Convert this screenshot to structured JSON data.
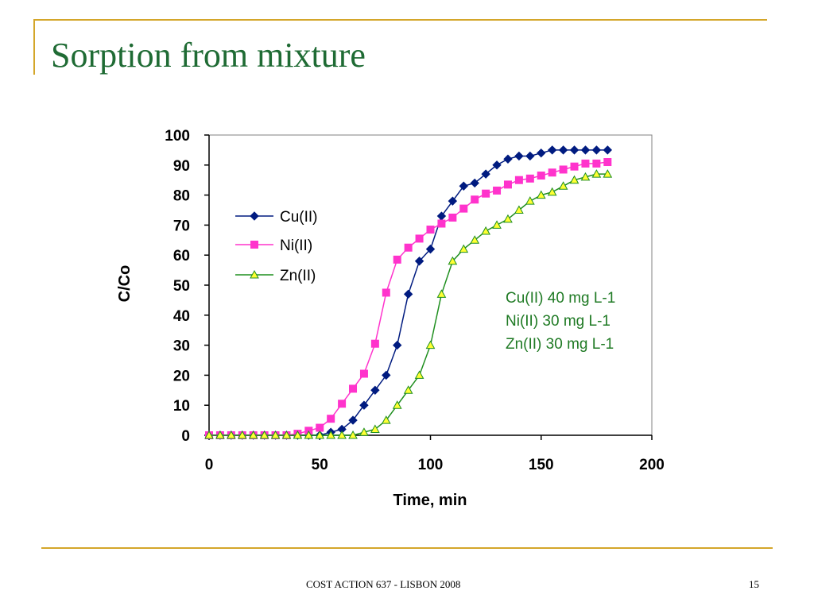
{
  "slide": {
    "title": "Sorption from mixture",
    "footer": "COST ACTION 637 -  LISBON 2008",
    "page_number": "15"
  },
  "colors": {
    "accent_rule": "#d4a62a",
    "title": "#1f6b34",
    "annotation": "#1f7a24"
  },
  "chart_data": {
    "type": "line",
    "title": "",
    "xlabel": "Time, min",
    "ylabel": "C/Co",
    "xlim": [
      0,
      200
    ],
    "ylim": [
      0,
      100
    ],
    "xticks": [
      0,
      50,
      100,
      150,
      200
    ],
    "yticks": [
      0,
      10,
      20,
      30,
      40,
      50,
      60,
      70,
      80,
      90,
      100
    ],
    "grid": false,
    "legend_position": "upper-left",
    "annotations": [
      "Cu(II) 40 mg L-1",
      "Ni(II) 30 mg L-1",
      "Zn(II) 30 mg L-1"
    ],
    "x": [
      0,
      5,
      10,
      15,
      20,
      25,
      30,
      35,
      40,
      45,
      50,
      55,
      60,
      65,
      70,
      75,
      80,
      85,
      90,
      95,
      100,
      105,
      110,
      115,
      120,
      125,
      130,
      135,
      140,
      145,
      150,
      155,
      160,
      165,
      170,
      175,
      180
    ],
    "series": [
      {
        "name": "Cu(II)",
        "color": "#001b80",
        "marker": "diamond",
        "values": [
          0,
          0,
          0,
          0,
          0,
          0,
          0,
          0,
          0,
          0,
          0,
          1,
          2,
          5,
          10,
          15,
          20,
          30,
          47,
          58,
          62,
          73,
          78,
          83,
          84,
          87,
          90,
          92,
          93,
          93,
          94,
          95,
          95,
          95,
          95,
          95,
          95
        ]
      },
      {
        "name": "Ni(II)",
        "color": "#ff33cc",
        "marker": "square",
        "values": [
          0,
          0,
          0,
          0,
          0,
          0,
          0,
          0,
          0.5,
          1.5,
          2.5,
          5.5,
          10.5,
          15.5,
          20.5,
          30.5,
          47.5,
          58.5,
          62.5,
          65.5,
          68.5,
          70.5,
          72.5,
          75.5,
          78.5,
          80.5,
          81.5,
          83.5,
          85,
          85.5,
          86.5,
          87.5,
          88.5,
          89.5,
          90.5,
          90.5,
          91
        ]
      },
      {
        "name": "Zn(II)",
        "color": "#1f8f1f",
        "fill": "#ffff33",
        "marker": "triangle",
        "values": [
          0,
          0,
          0,
          0,
          0,
          0,
          0,
          0,
          0,
          0,
          0,
          0,
          0,
          0,
          1,
          2,
          5,
          10,
          15,
          20,
          30,
          47,
          58,
          62,
          65,
          68,
          70,
          72,
          75,
          78,
          80,
          81,
          83,
          85,
          86,
          87,
          87
        ]
      }
    ]
  }
}
